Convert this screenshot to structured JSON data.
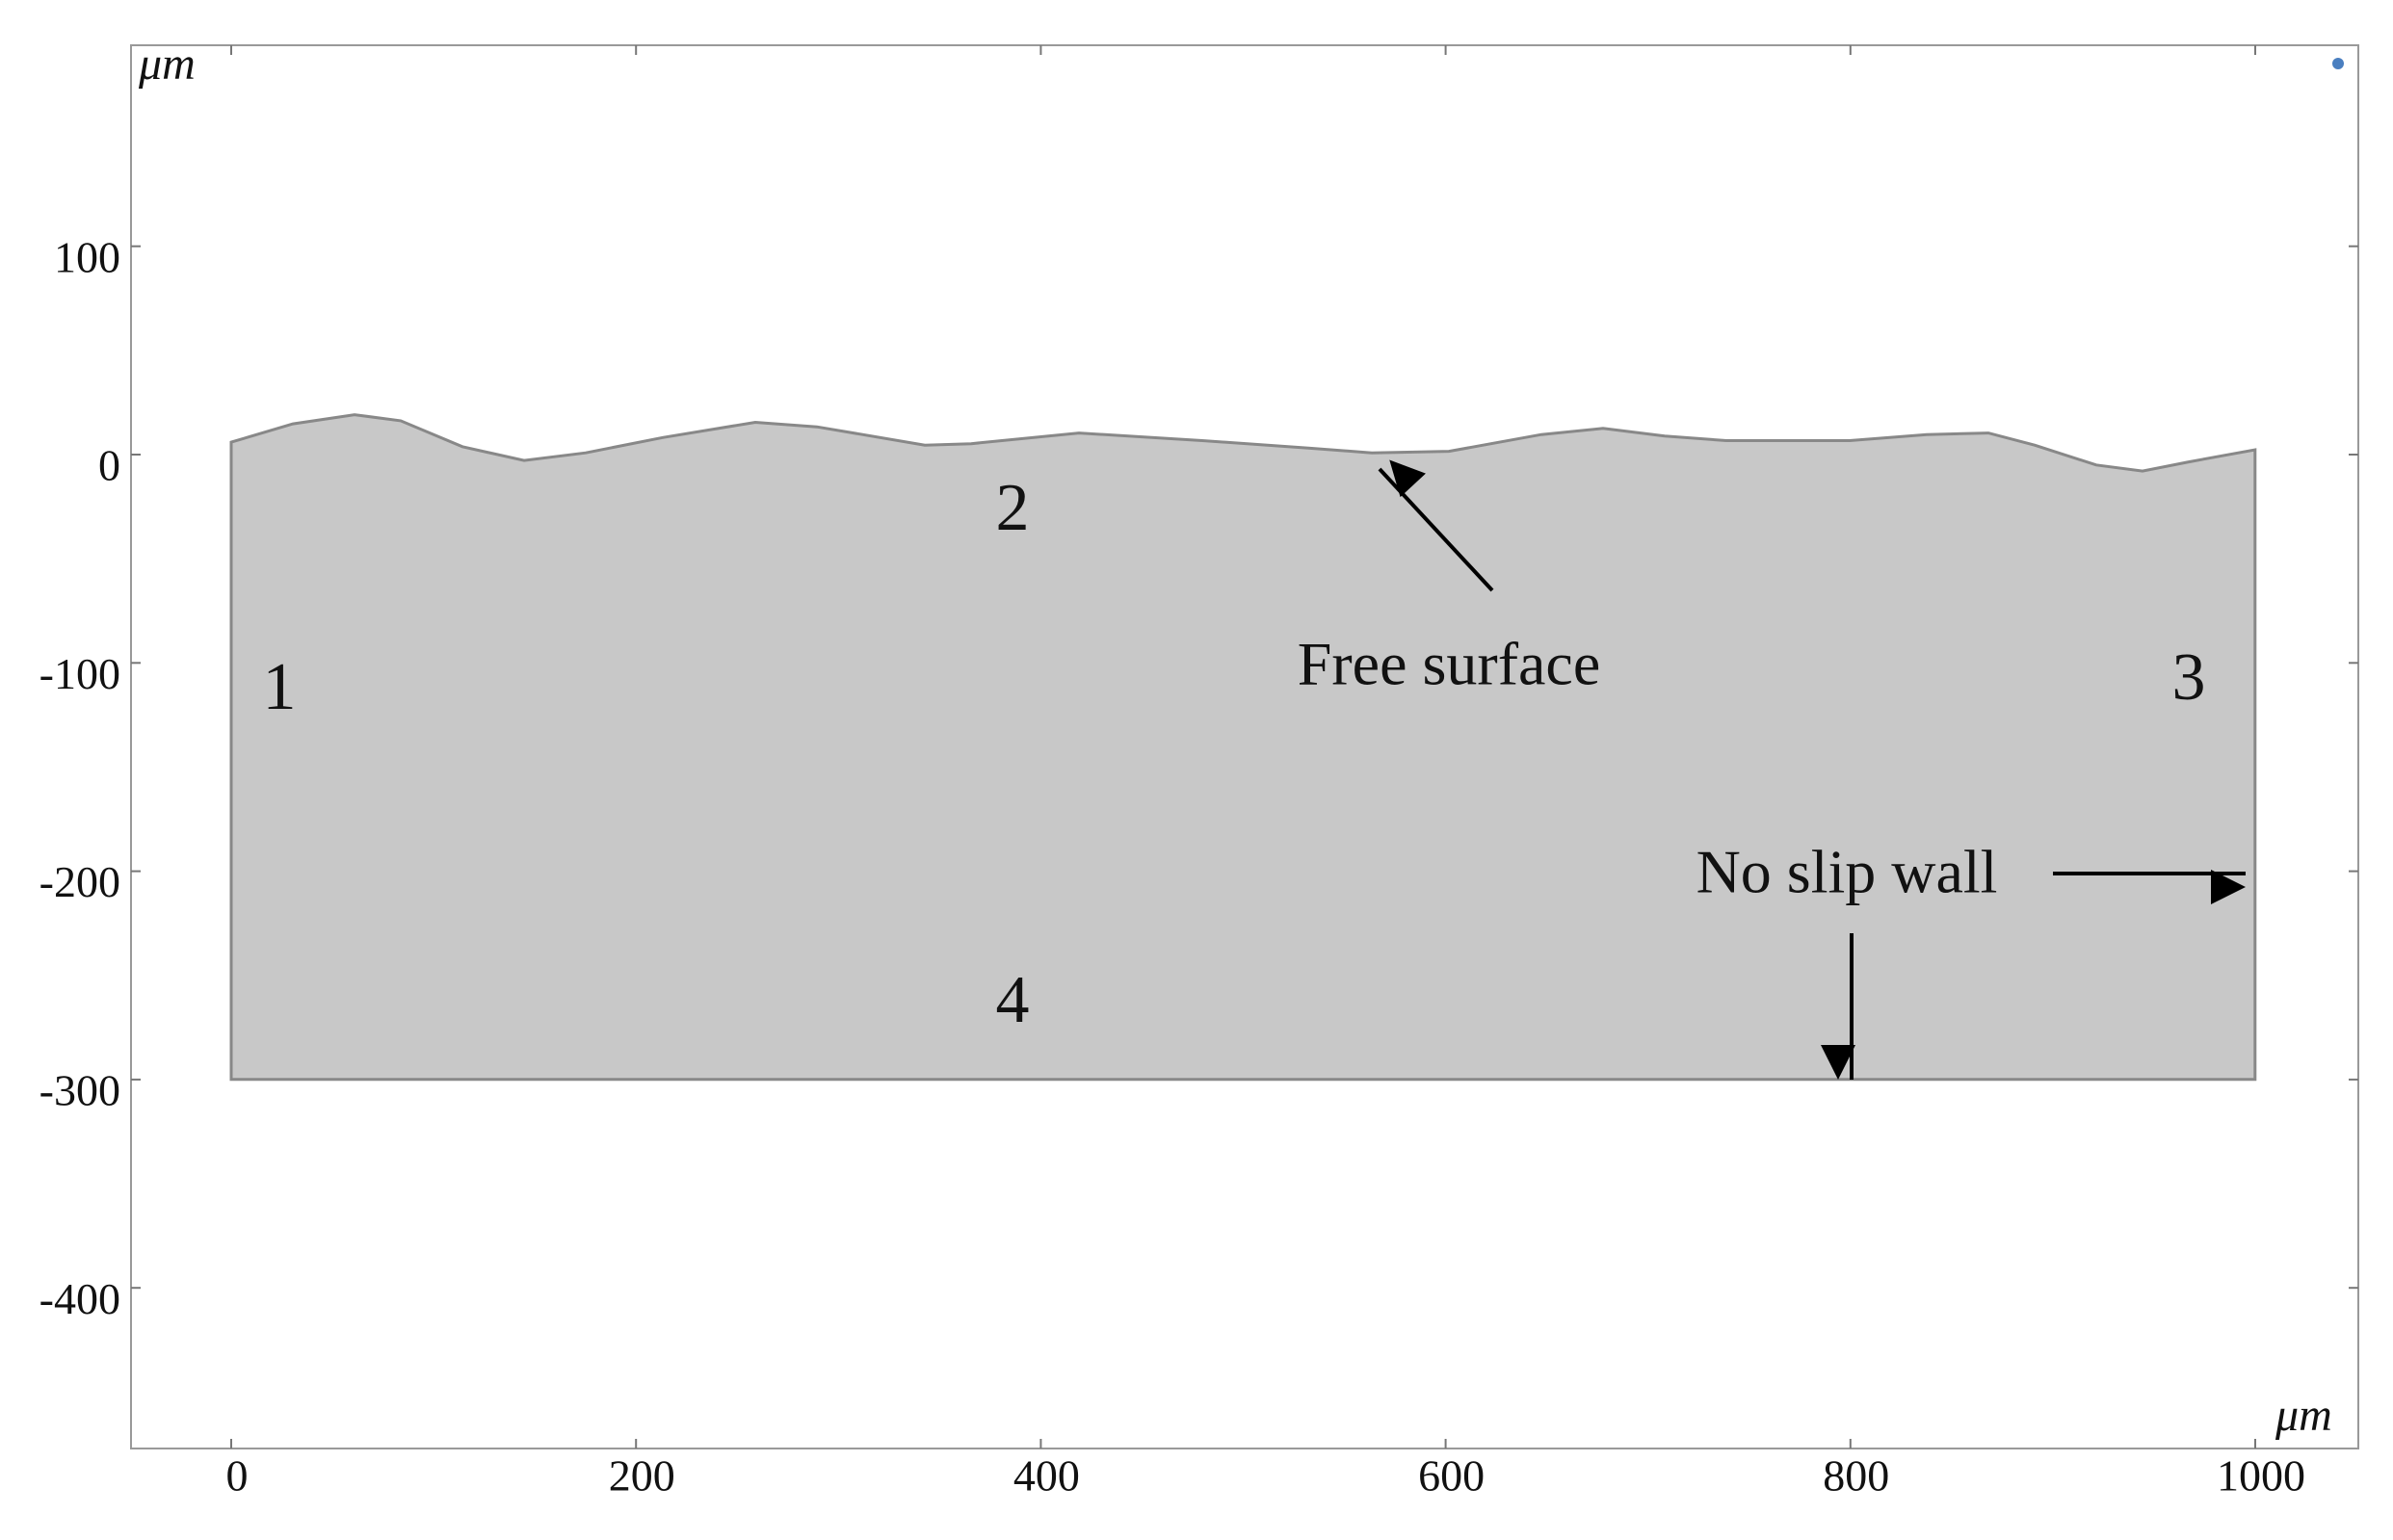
{
  "axes": {
    "x_unit": "μm",
    "y_unit": "μm",
    "xticks": [
      0,
      200,
      400,
      600,
      800,
      1000
    ],
    "yticks": [
      100,
      0,
      -100,
      -200,
      -300,
      -400
    ]
  },
  "regions": [
    "1",
    "2",
    "3",
    "4"
  ],
  "annotations": {
    "free_surface": "Free surface",
    "no_slip_wall": "No slip wall"
  }
}
